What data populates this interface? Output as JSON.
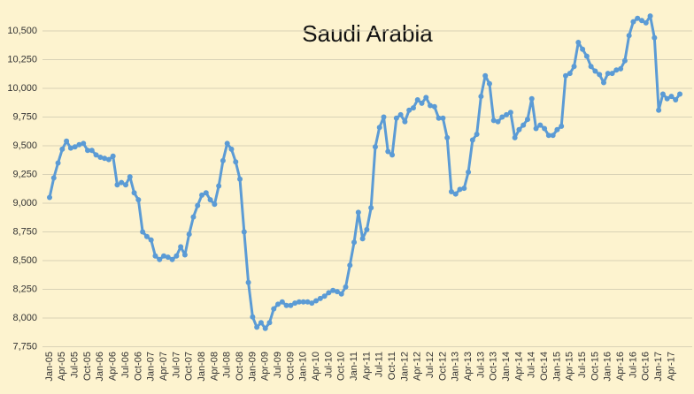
{
  "chart_data": {
    "type": "line",
    "title": "Saudi Arabia",
    "categories": [
      "Jan-05",
      null,
      null,
      "Apr-05",
      null,
      null,
      "Jul-05",
      null,
      null,
      "Oct-05",
      null,
      null,
      "Jan-06",
      null,
      null,
      "Apr-06",
      null,
      null,
      "Jul-06",
      null,
      null,
      "Oct-06",
      null,
      null,
      "Jan-07",
      null,
      null,
      "Apr-07",
      null,
      null,
      "Jul-07",
      null,
      null,
      "Oct-07",
      null,
      null,
      "Jan-08",
      null,
      null,
      "Apr-08",
      null,
      null,
      "Jul-08",
      null,
      null,
      "Oct-08",
      null,
      null,
      "Jan-09",
      null,
      null,
      "Apr-09",
      null,
      null,
      "Jul-09",
      null,
      null,
      "Oct-09",
      null,
      null,
      "Jan-10",
      null,
      null,
      "Apr-10",
      null,
      null,
      "Jul-10",
      null,
      null,
      "Oct-10",
      null,
      null,
      "Jan-11",
      null,
      null,
      "Apr-11",
      null,
      null,
      "Jul-11",
      null,
      null,
      "Oct-11",
      null,
      null,
      "Jan-12",
      null,
      null,
      "Apr-12",
      null,
      null,
      "Jul-12",
      null,
      null,
      "Oct-12",
      null,
      null,
      "Jan-13",
      null,
      null,
      "Apr-13",
      null,
      null,
      "Jul-13",
      null,
      null,
      "Oct-13",
      null,
      null,
      "Jan-14",
      null,
      null,
      "Apr-14",
      null,
      null,
      "Jul-14",
      null,
      null,
      "Oct-14",
      null,
      null,
      "Jan-15",
      null,
      null,
      "Apr-15",
      null,
      null,
      "Jul-15",
      null,
      null,
      "Oct-15",
      null,
      null,
      "Jan-16",
      null,
      null,
      "Apr-16",
      null,
      null,
      "Jul-16",
      null,
      null,
      "Oct-16",
      null,
      null,
      "Jan-17",
      null,
      null,
      "Apr-17",
      null,
      null
    ],
    "values": [
      9050,
      9220,
      9350,
      9470,
      9540,
      9480,
      9490,
      9510,
      9520,
      9460,
      9460,
      9420,
      9400,
      9390,
      9380,
      9410,
      9160,
      9180,
      9160,
      9230,
      9090,
      9030,
      8750,
      8710,
      8680,
      8540,
      8510,
      8540,
      8530,
      8510,
      8540,
      8620,
      8550,
      8730,
      8880,
      8980,
      9070,
      9090,
      9030,
      8990,
      9150,
      9370,
      9520,
      9470,
      9360,
      9210,
      8750,
      8310,
      8010,
      7920,
      7960,
      7910,
      7960,
      8080,
      8120,
      8140,
      8110,
      8110,
      8130,
      8140,
      8140,
      8140,
      8130,
      8150,
      8170,
      8190,
      8220,
      8240,
      8230,
      8210,
      8270,
      8460,
      8660,
      8920,
      8690,
      8770,
      8960,
      9490,
      9660,
      9750,
      9450,
      9420,
      9740,
      9770,
      9710,
      9810,
      9830,
      9900,
      9870,
      9920,
      9850,
      9840,
      9740,
      9740,
      9570,
      9100,
      9080,
      9120,
      9130,
      9270,
      9550,
      9600,
      9930,
      10110,
      10040,
      9720,
      9710,
      9750,
      9770,
      9790,
      9570,
      9640,
      9680,
      9730,
      9910,
      9650,
      9680,
      9650,
      9590,
      9590,
      9640,
      9670,
      10110,
      10130,
      10190,
      10400,
      10340,
      10280,
      10190,
      10150,
      10120,
      10050,
      10130,
      10130,
      10160,
      10170,
      10240,
      10460,
      10580,
      10610,
      10590,
      10570,
      10630,
      10440,
      9810,
      9950,
      9910,
      9930,
      9900,
      9950
    ],
    "color": "#5b9bd5",
    "ylim": [
      7750,
      10750
    ],
    "yticks": [
      {
        "value": 7750,
        "label": "7,750"
      },
      {
        "value": 8000,
        "label": "8,000"
      },
      {
        "value": 8250,
        "label": "8,250"
      },
      {
        "value": 8500,
        "label": "8,500"
      },
      {
        "value": 8750,
        "label": "8,750"
      },
      {
        "value": 9000,
        "label": "9,000"
      },
      {
        "value": 9250,
        "label": "9,250"
      },
      {
        "value": 9500,
        "label": "9,500"
      },
      {
        "value": 9750,
        "label": "9,750"
      },
      {
        "value": 10000,
        "label": "10,000"
      },
      {
        "value": 10250,
        "label": "10,250"
      },
      {
        "value": 10500,
        "label": "10,500"
      }
    ],
    "grid": true
  }
}
